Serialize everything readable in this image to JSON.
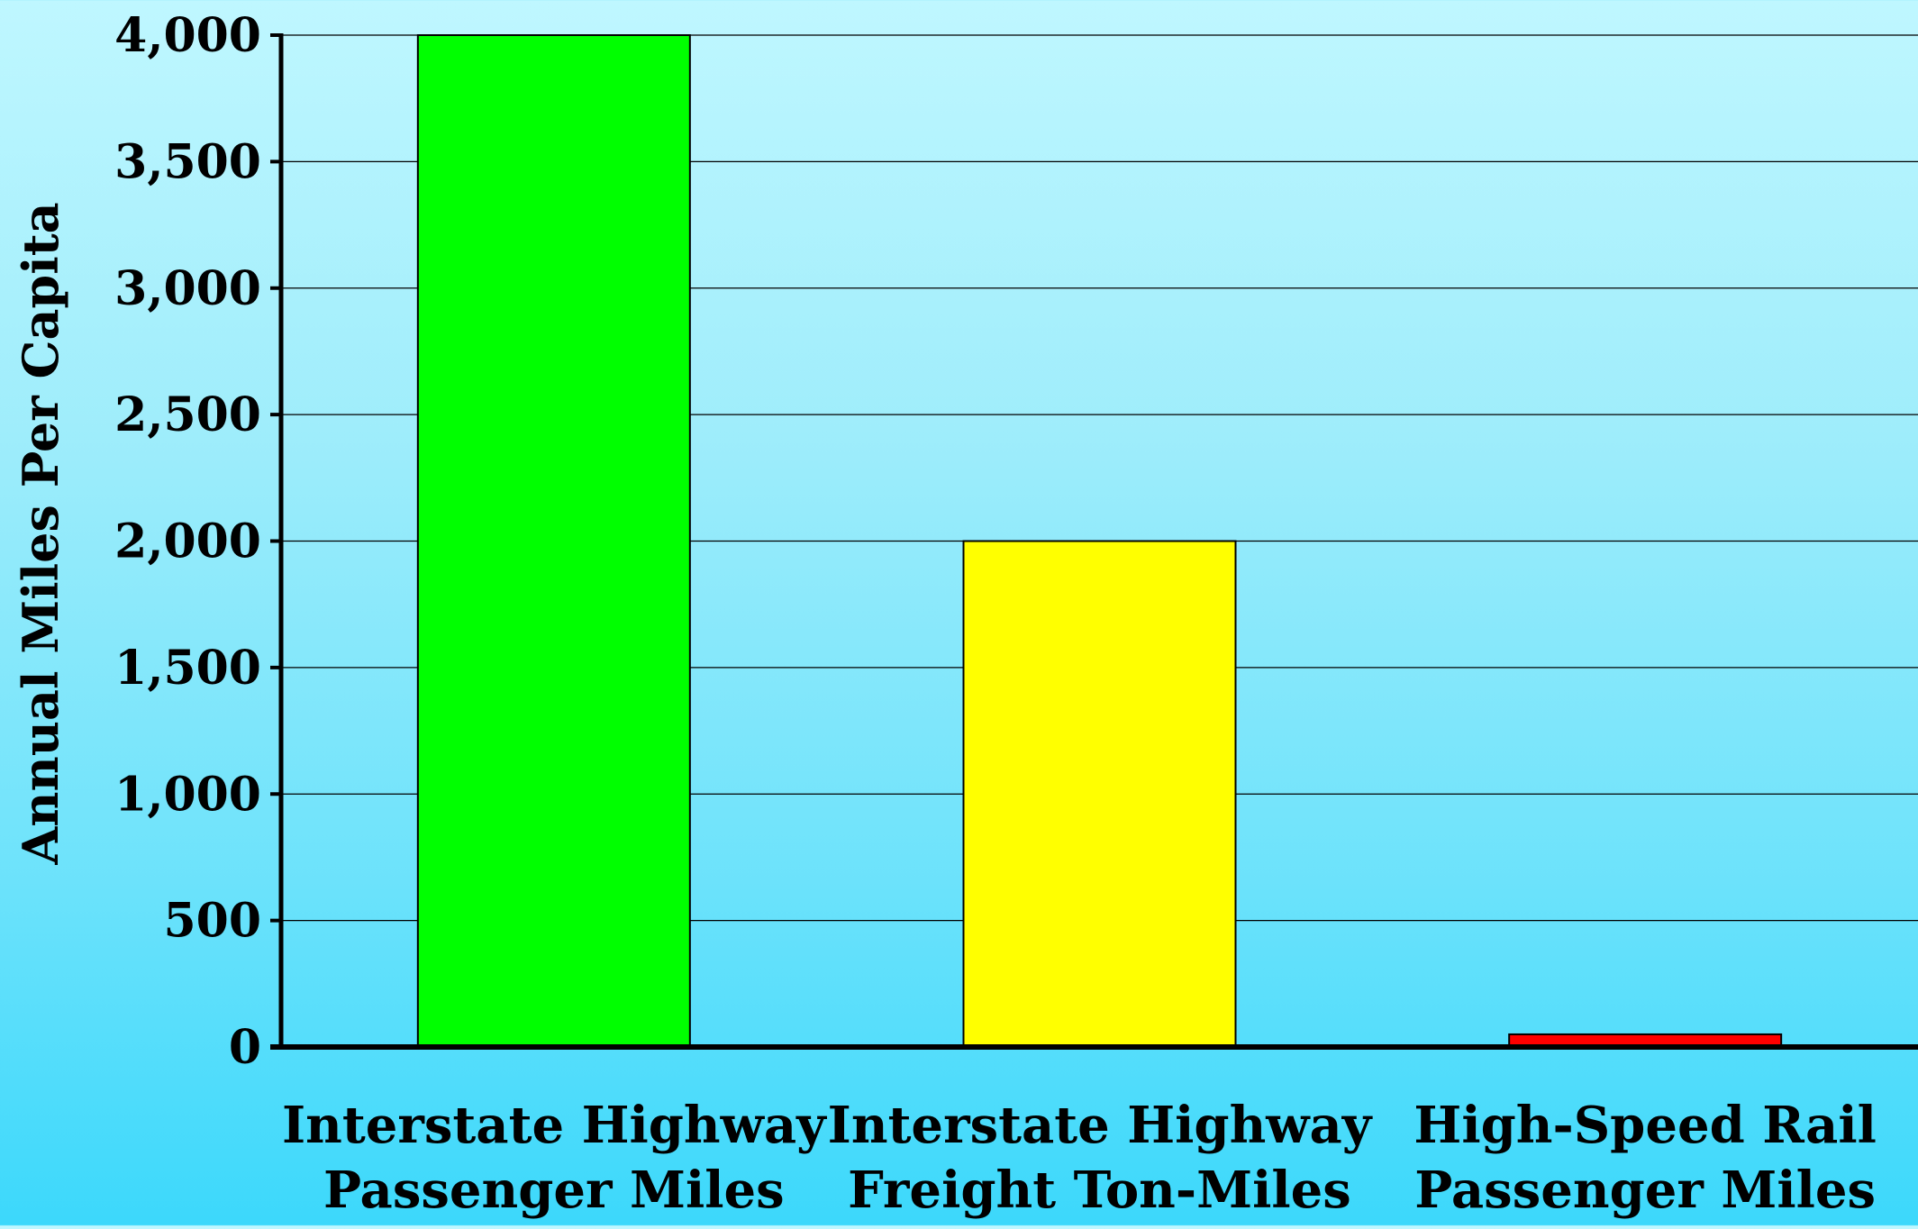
{
  "chart_data": {
    "type": "bar",
    "title": "",
    "xlabel": "",
    "ylabel": "Annual Miles Per Capita",
    "ylim": [
      0,
      4000
    ],
    "yticks": [
      0,
      500,
      1000,
      1500,
      2000,
      2500,
      3000,
      3500,
      4000
    ],
    "ytick_labels": [
      "0",
      "500",
      "1,000",
      "1,500",
      "2,000",
      "2,500",
      "3,000",
      "3,500",
      "4,000"
    ],
    "grid": true,
    "categories": [
      [
        "Interstate Highway",
        "Passenger Miles"
      ],
      [
        "Interstate Highway",
        "Freight Ton-Miles"
      ],
      [
        "High-Speed Rail",
        "Passenger Miles"
      ]
    ],
    "values": [
      4000,
      2000,
      50
    ],
    "colors": [
      "#00ff00",
      "#ffff00",
      "#ff0000"
    ]
  }
}
